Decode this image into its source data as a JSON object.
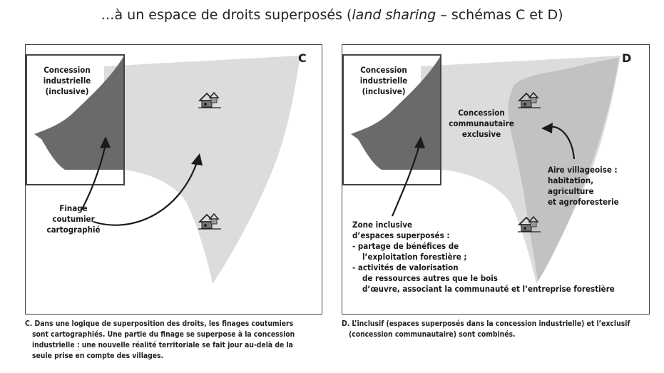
{
  "title": {
    "prefix": "…à un espace de droits superposés (",
    "italic": "land sharing",
    "suffix": " – schémas C et D)"
  },
  "panel_c": {
    "letter": "C",
    "concession_label": [
      "Concession",
      "industrielle",
      "(inclusive)"
    ],
    "finage_label": [
      "Finage",
      "coutumier",
      "cartographié"
    ]
  },
  "panel_d": {
    "letter": "D",
    "concession_label": [
      "Concession",
      "industrielle",
      "(inclusive)"
    ],
    "communautaire_label": [
      "Concession",
      "communautaire",
      "exclusive"
    ],
    "aire_label": [
      "Aire villageoise :",
      "habitation,",
      "agriculture",
      "et agroforesterie"
    ],
    "zone_label": [
      "Zone inclusive",
      "d’espaces superposés :",
      "- partage de bénéfices de",
      "l’exploitation forestière ;",
      "- activités de valorisation",
      "de ressources autres que le bois",
      "d’œuvre, associant la communauté et l’entreprise forestière"
    ]
  },
  "captions": {
    "c_lines": [
      "C. Dans une logique de superposition des droits, les finages coutumiers",
      "sont cartographiés. Une partie du finage se superpose à la concession",
      "industrielle : une nouvelle réalité territoriale se fait jour au-delà de la",
      "seule prise en compte des villages."
    ],
    "d_lines": [
      "D. L’inclusif (espaces superposés dans la concession industrielle) et l’exclusif",
      "(concession communautaire) sont combinés."
    ]
  },
  "colors": {
    "light_area": "#dcdcdc",
    "mid_area": "#c2c2c2",
    "dark_area": "#6a6a6a",
    "frame": "#444444"
  },
  "icons": [
    "village-icon"
  ]
}
